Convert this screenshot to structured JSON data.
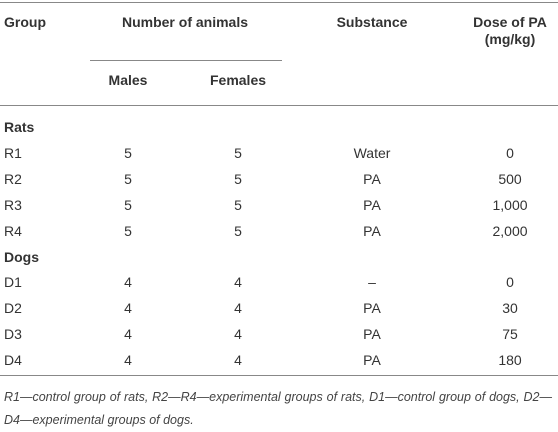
{
  "table": {
    "header": {
      "group": "Group",
      "number_of_animals": "Number of animals",
      "males": "Males",
      "females": "Females",
      "substance": "Substance",
      "dose": "Dose of PA (mg/kg)"
    },
    "sections": [
      {
        "label": "Rats",
        "rows": [
          [
            "R1",
            "5",
            "5",
            "Water",
            "0"
          ],
          [
            "R2",
            "5",
            "5",
            "PA",
            "500"
          ],
          [
            "R3",
            "5",
            "5",
            "PA",
            "1,000"
          ],
          [
            "R4",
            "5",
            "5",
            "PA",
            "2,000"
          ]
        ]
      },
      {
        "label": "Dogs",
        "rows": [
          [
            "D1",
            "4",
            "4",
            "–",
            "0"
          ],
          [
            "D2",
            "4",
            "4",
            "PA",
            "30"
          ],
          [
            "D3",
            "4",
            "4",
            "PA",
            "75"
          ],
          [
            "D4",
            "4",
            "4",
            "PA",
            "180"
          ]
        ]
      }
    ],
    "footnote": "R1—control group of rats, R2—R4—experimental groups of rats, D1—control group of dogs, D2—D4—experimental groups of dogs."
  }
}
